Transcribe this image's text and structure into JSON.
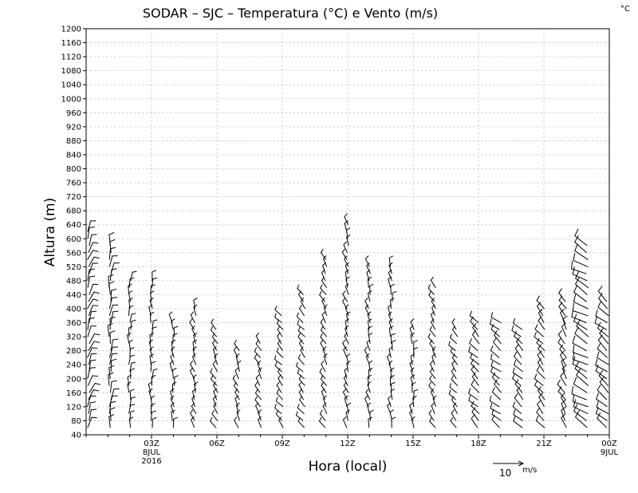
{
  "chart_data": {
    "type": "wind_barbs",
    "title": "SODAR – SJC – Temperatura (°C) e Vento (m/s)",
    "corner_unit": "°C",
    "xlabel": "Hora (local)",
    "ylabel": "Altura (m)",
    "xlim": [
      0,
      24
    ],
    "ylim": [
      40,
      1200
    ],
    "grid": true,
    "y_ticks": [
      40,
      80,
      120,
      160,
      200,
      240,
      280,
      320,
      360,
      400,
      440,
      480,
      520,
      560,
      600,
      640,
      680,
      720,
      760,
      800,
      840,
      880,
      920,
      960,
      1000,
      1040,
      1080,
      1120,
      1160,
      1200
    ],
    "x_ticks": [
      {
        "x": 3,
        "label": "03Z",
        "sub1": "8JUL",
        "sub2": "2016"
      },
      {
        "x": 6,
        "label": "06Z",
        "sub1": "",
        "sub2": ""
      },
      {
        "x": 9,
        "label": "09Z",
        "sub1": "",
        "sub2": ""
      },
      {
        "x": 12,
        "label": "12Z",
        "sub1": "",
        "sub2": ""
      },
      {
        "x": 15,
        "label": "15Z",
        "sub1": "",
        "sub2": ""
      },
      {
        "x": 18,
        "label": "18Z",
        "sub1": "",
        "sub2": ""
      },
      {
        "x": 21,
        "label": "21Z",
        "sub1": "",
        "sub2": ""
      },
      {
        "x": 24,
        "label": "00Z",
        "sub1": "9JUL",
        "sub2": ""
      }
    ],
    "reference_vector": {
      "speed": "10",
      "unit": "m/s"
    },
    "profiles": [
      {
        "hour": 0.1,
        "top": 620,
        "direction": 200,
        "speed": 5
      },
      {
        "hour": 1.1,
        "top": 580,
        "direction": 185,
        "speed": 5
      },
      {
        "hour": 2.0,
        "top": 490,
        "direction": 180,
        "speed": 4
      },
      {
        "hour": 3.0,
        "top": 490,
        "direction": 175,
        "speed": 4
      },
      {
        "hour": 4.0,
        "top": 360,
        "direction": 170,
        "speed": 4
      },
      {
        "hour": 5.0,
        "top": 400,
        "direction": 160,
        "speed": 4
      },
      {
        "hour": 6.0,
        "top": 350,
        "direction": 150,
        "speed": 3
      },
      {
        "hour": 7.0,
        "top": 290,
        "direction": 155,
        "speed": 3
      },
      {
        "hour": 8.0,
        "top": 300,
        "direction": 150,
        "speed": 3
      },
      {
        "hour": 9.0,
        "top": 380,
        "direction": 140,
        "speed": 3
      },
      {
        "hour": 10.0,
        "top": 440,
        "direction": 140,
        "speed": 3
      },
      {
        "hour": 11.0,
        "top": 550,
        "direction": 150,
        "speed": 3
      },
      {
        "hour": 12.0,
        "top": 650,
        "direction": 160,
        "speed": 4
      },
      {
        "hour": 13.0,
        "top": 530,
        "direction": 165,
        "speed": 4
      },
      {
        "hour": 14.0,
        "top": 520,
        "direction": 170,
        "speed": 4
      },
      {
        "hour": 15.0,
        "top": 340,
        "direction": 170,
        "speed": 4
      },
      {
        "hour": 16.0,
        "top": 460,
        "direction": 150,
        "speed": 4
      },
      {
        "hour": 17.0,
        "top": 340,
        "direction": 140,
        "speed": 4
      },
      {
        "hour": 18.0,
        "top": 370,
        "direction": 135,
        "speed": 5
      },
      {
        "hour": 19.0,
        "top": 360,
        "direction": 130,
        "speed": 5
      },
      {
        "hour": 20.0,
        "top": 340,
        "direction": 135,
        "speed": 5
      },
      {
        "hour": 21.0,
        "top": 400,
        "direction": 140,
        "speed": 5
      },
      {
        "hour": 22.0,
        "top": 420,
        "direction": 150,
        "speed": 5
      },
      {
        "hour": 23.0,
        "top": 580,
        "direction": 120,
        "speed": 7
      },
      {
        "hour": 24.0,
        "top": 430,
        "direction": 130,
        "speed": 6
      }
    ]
  }
}
